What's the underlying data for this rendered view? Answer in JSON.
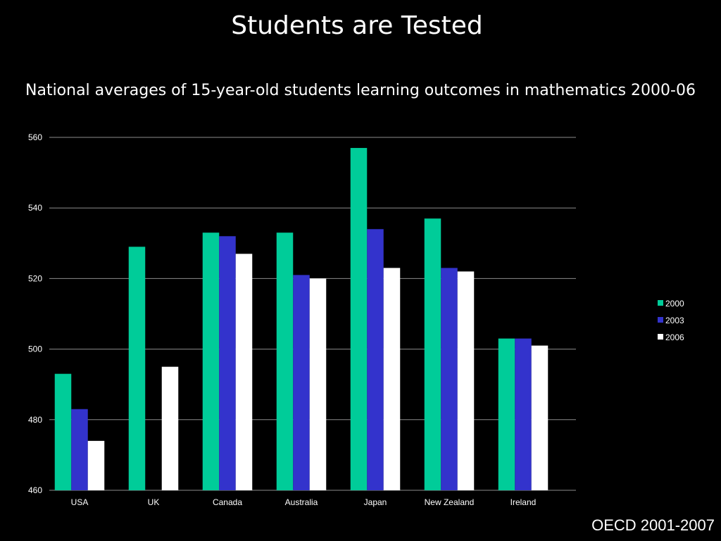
{
  "slide": {
    "title": "Students are Tested",
    "subtitle": "National averages of 15-year-old students learning outcomes in mathematics 2000-06",
    "source": "OECD 2001-2007"
  },
  "colors": {
    "background": "#000000",
    "gridline": "#8c8c8c",
    "text": "#ffffff"
  },
  "chart_data": {
    "type": "bar",
    "categories": [
      "USA",
      "UK",
      "Canada",
      "Australia",
      "Japan",
      "New Zealand",
      "Ireland"
    ],
    "series": [
      {
        "name": "2000",
        "color": "#00cc99",
        "values": [
          493,
          529,
          533,
          533,
          557,
          537,
          503
        ]
      },
      {
        "name": "2003",
        "color": "#3333cc",
        "values": [
          483,
          null,
          532,
          521,
          534,
          523,
          503
        ]
      },
      {
        "name": "2006",
        "color": "#ffffff",
        "values": [
          474,
          495,
          527,
          520,
          523,
          522,
          501
        ]
      }
    ],
    "ylim": [
      460,
      560
    ],
    "yticks": [
      460,
      480,
      500,
      520,
      540,
      560
    ],
    "grid": true,
    "legend_position": "right",
    "title": "",
    "xlabel": "",
    "ylabel": ""
  }
}
